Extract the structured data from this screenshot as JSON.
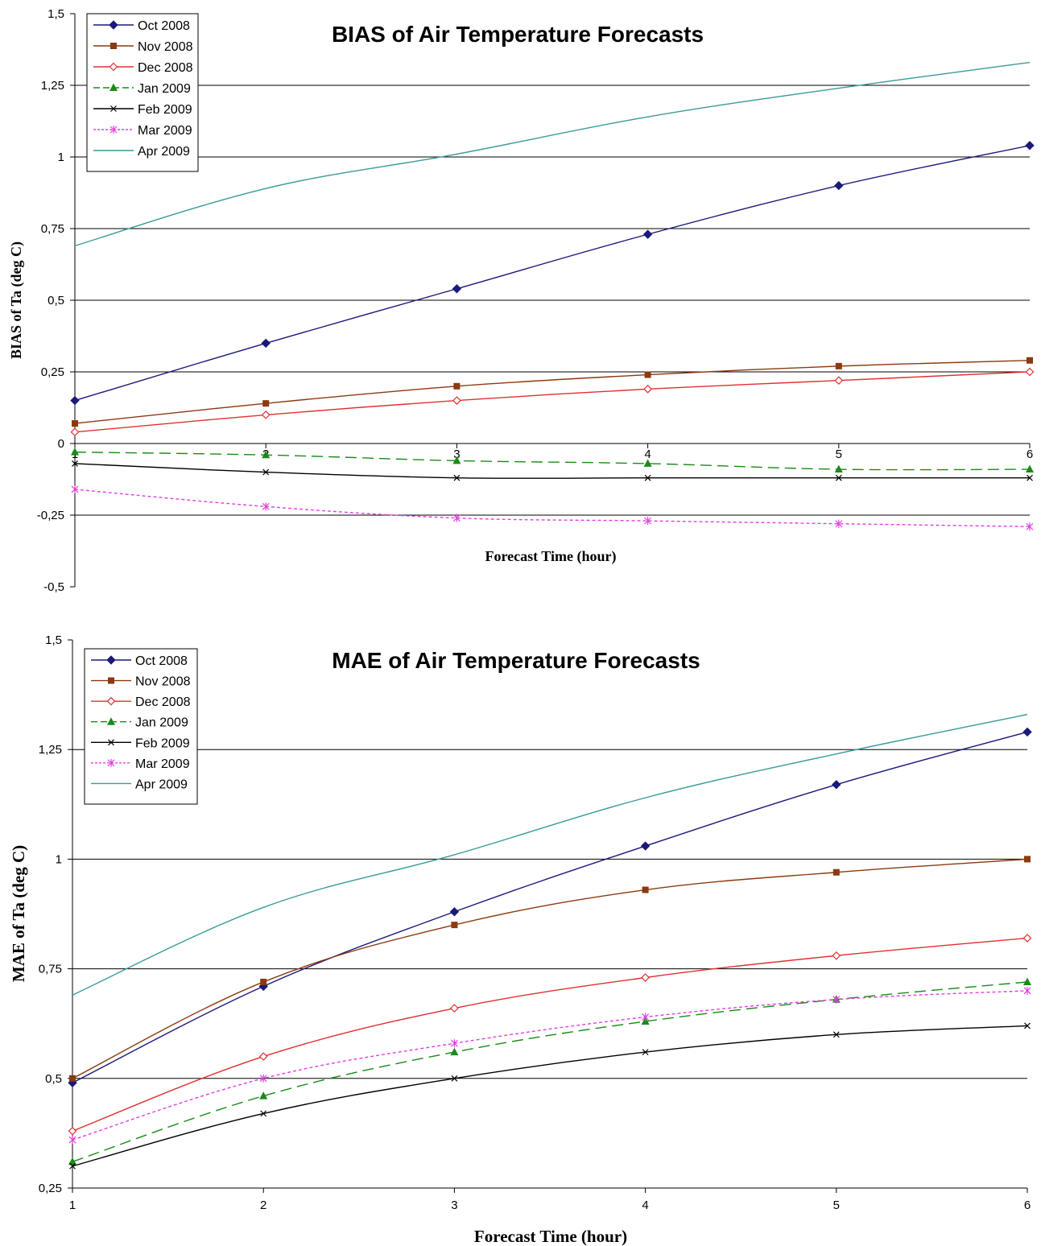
{
  "chart_data": [
    {
      "type": "line",
      "title": "BIAS of Air Temperature Forecasts",
      "xlabel": "Forecast Time (hour)",
      "ylabel": "BIAS of Ta (deg C)",
      "x": [
        1,
        2,
        3,
        4,
        5,
        6
      ],
      "x_ticks": [
        "1",
        "2",
        "3",
        "4",
        "5",
        "6"
      ],
      "ylim": [
        -0.5,
        1.5
      ],
      "y_ticks": [
        "-0,5",
        "-0,25",
        "0",
        "0,25",
        "0,5",
        "0,75",
        "1",
        "1,25",
        "1,5"
      ],
      "grid": "horizontal",
      "legend_position": "top-left",
      "series": [
        {
          "name": "Oct 2008",
          "values": [
            0.15,
            0.35,
            0.54,
            0.73,
            0.9,
            1.04
          ],
          "color": "#1a1a7a",
          "marker": "diamond",
          "dash": "solid"
        },
        {
          "name": "Nov 2008",
          "values": [
            0.07,
            0.14,
            0.2,
            0.24,
            0.27,
            0.29
          ],
          "color": "#8b3a10",
          "marker": "square",
          "dash": "solid"
        },
        {
          "name": "Dec 2008",
          "values": [
            0.04,
            0.1,
            0.15,
            0.19,
            0.22,
            0.25
          ],
          "color": "#e03030",
          "marker": "diamond-open",
          "dash": "solid"
        },
        {
          "name": "Jan 2009",
          "values": [
            -0.03,
            -0.04,
            -0.06,
            -0.07,
            -0.09,
            -0.09
          ],
          "color": "#1a8a1a",
          "marker": "triangle",
          "dash": "dashed"
        },
        {
          "name": "Feb 2009",
          "values": [
            -0.07,
            -0.1,
            -0.12,
            -0.12,
            -0.12,
            -0.12
          ],
          "color": "#000000",
          "marker": "x",
          "dash": "solid"
        },
        {
          "name": "Mar 2009",
          "values": [
            -0.16,
            -0.22,
            -0.26,
            -0.27,
            -0.28,
            -0.29
          ],
          "color": "#e040e0",
          "marker": "star",
          "dash": "dotted"
        },
        {
          "name": "Apr 2009",
          "values": [
            0.69,
            0.89,
            1.01,
            1.14,
            1.24,
            1.33
          ],
          "color": "#3a9a9a",
          "marker": "none",
          "dash": "solid"
        }
      ]
    },
    {
      "type": "line",
      "title": "MAE of Air Temperature Forecasts",
      "xlabel": "Forecast Time (hour)",
      "ylabel": "MAE of Ta (deg C)",
      "x": [
        1,
        2,
        3,
        4,
        5,
        6
      ],
      "x_ticks": [
        "1",
        "2",
        "3",
        "4",
        "5",
        "6"
      ],
      "ylim": [
        0.25,
        1.5
      ],
      "y_ticks": [
        "0,25",
        "0,5",
        "0,75",
        "1",
        "1,25",
        "1,5"
      ],
      "grid": "horizontal",
      "legend_position": "top-left",
      "series": [
        {
          "name": "Oct 2008",
          "values": [
            0.49,
            0.71,
            0.88,
            1.03,
            1.17,
            1.29
          ],
          "color": "#1a1a7a",
          "marker": "diamond",
          "dash": "solid"
        },
        {
          "name": "Nov 2008",
          "values": [
            0.5,
            0.72,
            0.85,
            0.93,
            0.97,
            1.0
          ],
          "color": "#8b3a10",
          "marker": "square",
          "dash": "solid"
        },
        {
          "name": "Dec 2008",
          "values": [
            0.38,
            0.55,
            0.66,
            0.73,
            0.78,
            0.82
          ],
          "color": "#e03030",
          "marker": "diamond-open",
          "dash": "solid"
        },
        {
          "name": "Jan 2009",
          "values": [
            0.31,
            0.46,
            0.56,
            0.63,
            0.68,
            0.72
          ],
          "color": "#1a8a1a",
          "marker": "triangle",
          "dash": "dashed"
        },
        {
          "name": "Feb 2009",
          "values": [
            0.3,
            0.42,
            0.5,
            0.56,
            0.6,
            0.62
          ],
          "color": "#000000",
          "marker": "x",
          "dash": "solid"
        },
        {
          "name": "Mar 2009",
          "values": [
            0.36,
            0.5,
            0.58,
            0.64,
            0.68,
            0.7
          ],
          "color": "#e040e0",
          "marker": "star",
          "dash": "dotted"
        },
        {
          "name": "Apr 2009",
          "values": [
            0.69,
            0.89,
            1.01,
            1.14,
            1.24,
            1.33
          ],
          "color": "#3a9a9a",
          "marker": "none",
          "dash": "solid"
        }
      ]
    }
  ]
}
